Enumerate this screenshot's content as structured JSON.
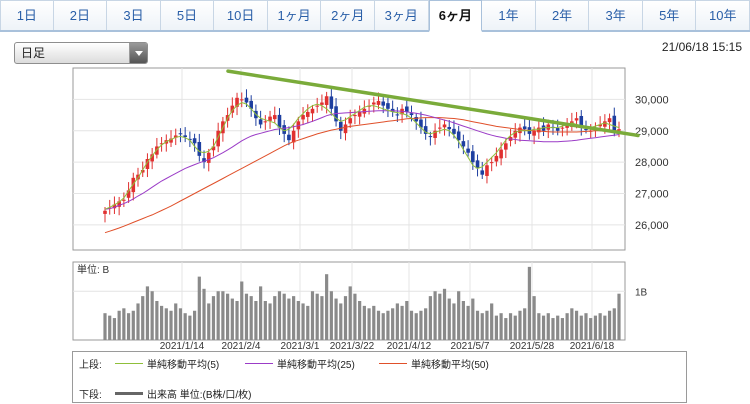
{
  "tabs": [
    {
      "label": "1日",
      "active": false
    },
    {
      "label": "2日",
      "active": false
    },
    {
      "label": "3日",
      "active": false
    },
    {
      "label": "5日",
      "active": false
    },
    {
      "label": "10日",
      "active": false
    },
    {
      "label": "1ヶ月",
      "active": false
    },
    {
      "label": "2ヶ月",
      "active": false
    },
    {
      "label": "3ヶ月",
      "active": false
    },
    {
      "label": "6ヶ月",
      "active": true
    },
    {
      "label": "1年",
      "active": false
    },
    {
      "label": "2年",
      "active": false
    },
    {
      "label": "3年",
      "active": false
    },
    {
      "label": "5年",
      "active": false
    },
    {
      "label": "10年",
      "active": false
    }
  ],
  "period_select": {
    "value": "日足"
  },
  "timestamp": "21/06/18 15:15",
  "colors": {
    "up_candle": "#e03030",
    "down_candle": "#1e3fa0",
    "ma5": "#8fbf3a",
    "ma25": "#9b3cc7",
    "ma50": "#e0502a",
    "trendline": "#7aab3a",
    "volume": "#8a8a8a"
  },
  "chart_data": {
    "type": "candlestick",
    "price_axis": {
      "ticks": [
        "30,000",
        "29,000",
        "28,000",
        "27,000",
        "26,000"
      ],
      "values": [
        30000,
        29000,
        28000,
        27000,
        26000
      ]
    },
    "date_labels": [
      "2021/1/14",
      "2021/2/4",
      "2021/3/1",
      "2021/3/22",
      "2021/4/12",
      "2021/5/7",
      "2021/5/28",
      "2021/6/18"
    ],
    "volume_axis": {
      "unit_label": "単位: B",
      "tick_label": "1B"
    },
    "close_series": [
      26450,
      26550,
      26650,
      26750,
      26800,
      27100,
      27500,
      27600,
      27750,
      28100,
      28250,
      28500,
      28600,
      28700,
      28750,
      28850,
      28900,
      28800,
      28700,
      28600,
      28200,
      28000,
      28300,
      28500,
      29000,
      29300,
      29500,
      29800,
      30050,
      30000,
      29900,
      29700,
      29400,
      29200,
      29300,
      29450,
      29500,
      29100,
      28900,
      28700,
      29000,
      29300,
      29500,
      29600,
      29700,
      29800,
      29900,
      30100,
      29700,
      29300,
      29000,
      29200,
      29400,
      29500,
      29600,
      29700,
      29800,
      29900,
      29950,
      29800,
      29700,
      29600,
      29500,
      29700,
      29600,
      29500,
      29300,
      29100,
      28900,
      28800,
      29000,
      29100,
      29200,
      29050,
      28900,
      28700,
      28500,
      28300,
      28000,
      27800,
      27600,
      27900,
      28000,
      28200,
      28400,
      28600,
      28800,
      29000,
      29100,
      29050,
      28900,
      29000,
      29100,
      29000,
      29200,
      29100,
      29000,
      29100,
      29200,
      29300,
      29400,
      29100,
      29050,
      29000,
      29100,
      29200,
      29300,
      29400,
      29000,
      29050
    ],
    "ma5": [
      26500,
      26560,
      26640,
      26730,
      26860,
      27080,
      27300,
      27500,
      27750,
      28000,
      28200,
      28400,
      28550,
      28650,
      28720,
      28790,
      28820,
      28780,
      28700,
      28500,
      28340,
      28300,
      28350,
      28500,
      28800,
      29100,
      29400,
      29650,
      29800,
      29900,
      29850,
      29700,
      29520,
      29400,
      29350,
      29300,
      29250,
      29100,
      29000,
      29050,
      29200,
      29400,
      29550,
      29700,
      29800,
      29850,
      29800,
      29700,
      29550,
      29400,
      29300,
      29350,
      29450,
      29550,
      29650,
      29750,
      29800,
      29800,
      29750,
      29700,
      29650,
      29600,
      29580,
      29550,
      29500,
      29400,
      29250,
      29100,
      28950,
      28900,
      28950,
      29000,
      29050,
      29000,
      28850,
      28650,
      28400,
      28150,
      27900,
      27800,
      27850,
      28000,
      28150,
      28300,
      28500,
      28700,
      28850,
      28950,
      29000,
      29000,
      29000,
      29050,
      29050,
      29100,
      29100,
      29100,
      29100,
      29150,
      29200,
      29250,
      29200,
      29150,
      29100,
      29100,
      29150,
      29200,
      29250,
      29200,
      29150,
      29100
    ],
    "ma25": [
      26500,
      26520,
      26560,
      26620,
      26680,
      26750,
      26830,
      26920,
      27000,
      27100,
      27200,
      27300,
      27400,
      27480,
      27560,
      27640,
      27720,
      27800,
      27860,
      27920,
      27980,
      28030,
      28080,
      28140,
      28220,
      28300,
      28390,
      28480,
      28580,
      28680,
      28760,
      28830,
      28880,
      28920,
      28960,
      29000,
      29040,
      29060,
      29080,
      29100,
      29130,
      29160,
      29200,
      29250,
      29300,
      29360,
      29420,
      29480,
      29520,
      29550,
      29560,
      29570,
      29580,
      29590,
      29600,
      29610,
      29620,
      29630,
      29640,
      29640,
      29640,
      29640,
      29630,
      29620,
      29600,
      29580,
      29560,
      29530,
      29500,
      29460,
      29420,
      29380,
      29340,
      29300,
      29250,
      29200,
      29150,
      29100,
      29050,
      29000,
      28950,
      28900,
      28860,
      28820,
      28790,
      28760,
      28740,
      28720,
      28700,
      28690,
      28680,
      28670,
      28660,
      28650,
      28650,
      28650,
      28650,
      28660,
      28670,
      28680,
      28700,
      28720,
      28740,
      28760,
      28780,
      28800,
      28820,
      28840,
      28860,
      28880
    ],
    "ma50": [
      25750,
      25800,
      25850,
      25900,
      25960,
      26020,
      26080,
      26140,
      26200,
      26260,
      26320,
      26390,
      26460,
      26530,
      26600,
      26680,
      26760,
      26840,
      26920,
      27000,
      27080,
      27160,
      27240,
      27320,
      27400,
      27480,
      27560,
      27640,
      27720,
      27800,
      27880,
      27960,
      28040,
      28120,
      28200,
      28280,
      28360,
      28440,
      28520,
      28590,
      28650,
      28700,
      28750,
      28800,
      28850,
      28900,
      28940,
      28980,
      29020,
      29050,
      29080,
      29110,
      29140,
      29160,
      29180,
      29200,
      29220,
      29240,
      29260,
      29280,
      29300,
      29320,
      29340,
      29360,
      29380,
      29390,
      29400,
      29410,
      29420,
      29420,
      29420,
      29420,
      29410,
      29400,
      29390,
      29370,
      29350,
      29320,
      29290,
      29260,
      29230,
      29200,
      29170,
      29140,
      29120,
      29100,
      29080,
      29060,
      29040,
      29020,
      29010,
      29000,
      28990,
      28980,
      28970,
      28960,
      28960,
      28960,
      28960,
      28960,
      28960,
      28970,
      28980,
      28990,
      29000,
      29000,
      29000,
      29000,
      29000,
      29000
    ],
    "volume": [
      0.55,
      0.5,
      0.45,
      0.6,
      0.65,
      0.55,
      0.6,
      0.75,
      0.9,
      1.1,
      1.0,
      0.8,
      0.7,
      0.65,
      0.6,
      0.75,
      0.65,
      0.55,
      0.5,
      0.6,
      1.3,
      1.05,
      0.75,
      0.9,
      1.0,
      1.0,
      0.95,
      0.85,
      0.8,
      1.2,
      0.95,
      0.9,
      0.8,
      1.1,
      0.8,
      0.75,
      0.9,
      1.0,
      0.95,
      0.85,
      0.9,
      0.8,
      0.75,
      0.7,
      1.0,
      0.95,
      0.9,
      1.35,
      1.0,
      0.85,
      0.75,
      0.9,
      1.1,
      0.95,
      0.8,
      0.7,
      0.65,
      0.7,
      0.6,
      0.55,
      0.6,
      0.65,
      0.75,
      0.7,
      0.8,
      0.6,
      0.55,
      0.6,
      0.65,
      0.9,
      1.0,
      0.95,
      1.05,
      0.85,
      0.75,
      1.0,
      0.8,
      0.7,
      0.85,
      0.6,
      0.55,
      0.6,
      0.75,
      0.5,
      0.55,
      0.45,
      0.55,
      0.5,
      0.6,
      0.65,
      1.5,
      0.9,
      0.55,
      0.5,
      0.55,
      0.45,
      0.5,
      0.45,
      0.55,
      0.65,
      0.6,
      0.5,
      0.55,
      0.45,
      0.5,
      0.55,
      0.5,
      0.6,
      0.65,
      0.95
    ],
    "trendline": {
      "start": 30900,
      "end": 28850
    }
  },
  "legend": {
    "top_label": "上段:",
    "bottom_label": "下段:",
    "ma5_label": "単純移動平均(5)",
    "ma25_label": "単純移動平均(25)",
    "ma50_label": "単純移動平均(50)",
    "volume_label": "出来高 単位:(B株/口/枚)"
  }
}
